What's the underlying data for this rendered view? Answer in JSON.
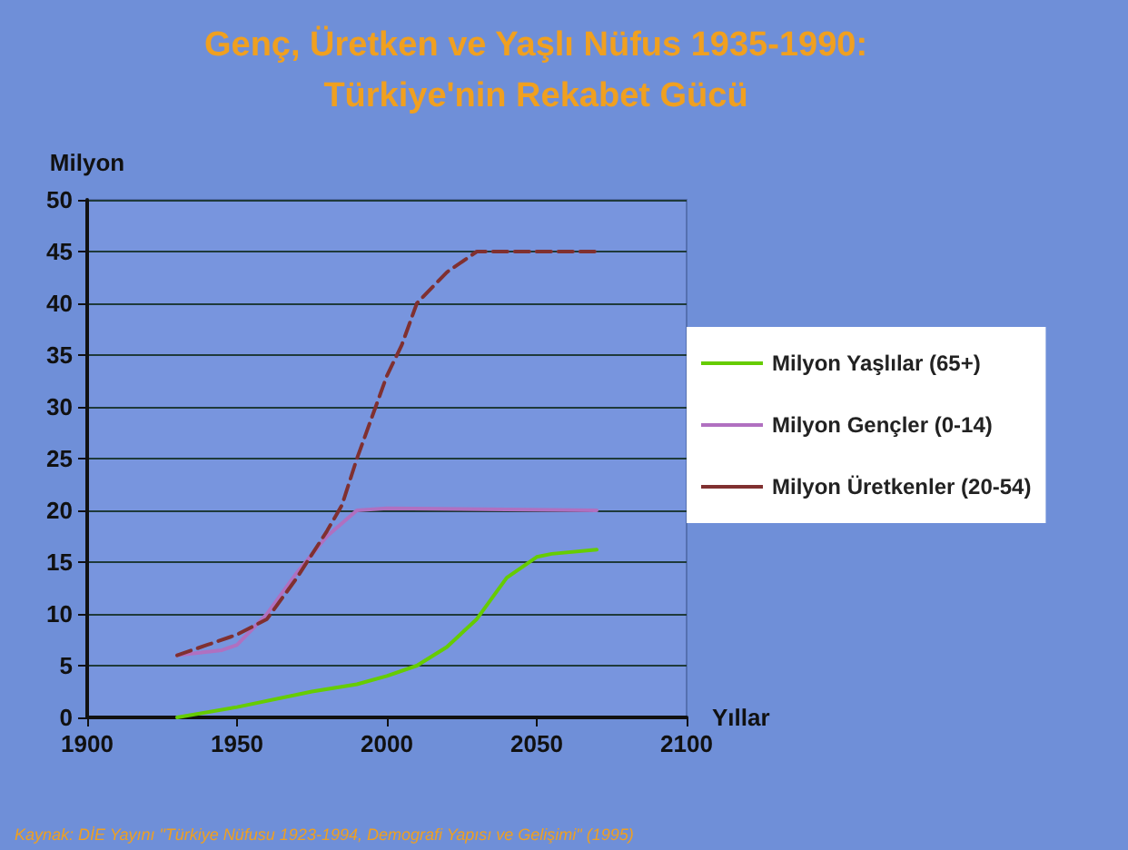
{
  "chart_data": {
    "type": "line",
    "title": "Genç, Üretken ve Yaşlı Nüfus 1935-1990:\nTürkiye'nin Rekabet Gücü",
    "xlabel": "Yıllar",
    "ylabel": "Milyon",
    "xlim": [
      1900,
      2100
    ],
    "xticks": [
      1900,
      1950,
      2000,
      2050,
      2100
    ],
    "ylim": [
      0,
      50
    ],
    "yticks": [
      0,
      5,
      10,
      15,
      20,
      25,
      30,
      35,
      40,
      45,
      50
    ],
    "grid": "y",
    "legend": "right",
    "marker": "none",
    "series": [
      {
        "name": "Milyon Yaşlılar (65+)",
        "color": "#66cc00",
        "line_style": "solid",
        "x": [
          1930,
          1950,
          1975,
          1990,
          2000,
          2010,
          2020,
          2030,
          2040,
          2050,
          2055,
          2070
        ],
        "values": [
          0,
          1,
          2.5,
          3.2,
          4,
          5,
          6.8,
          9.5,
          13.5,
          15.5,
          15.8,
          16.2
        ]
      },
      {
        "name": "Milyon Gençler (0-14)",
        "color": "#b070c0",
        "line_style": "solid",
        "x": [
          1930,
          1945,
          1950,
          1960,
          1970,
          1980,
          1990,
          2000,
          2070
        ],
        "values": [
          6,
          6.5,
          7,
          10,
          14,
          17.5,
          20,
          20.2,
          20
        ]
      },
      {
        "name": "Milyon Üretkenler (20-54)",
        "color": "#803030",
        "line_style": "dashed",
        "x": [
          1930,
          1940,
          1950,
          1960,
          1970,
          1980,
          1985,
          1990,
          1995,
          2000,
          2005,
          2010,
          2020,
          2030,
          2050,
          2070
        ],
        "values": [
          6,
          7,
          8,
          9.5,
          13.5,
          18,
          20.5,
          25,
          29,
          33,
          36,
          40,
          43,
          45,
          45,
          45
        ]
      }
    ],
    "annotations": [
      "Kaynak: DİE Yayını \"Türkiye Nüfusu 1923-1994, Demografi Yapısı ve Gelişimi\" (1995)"
    ]
  }
}
